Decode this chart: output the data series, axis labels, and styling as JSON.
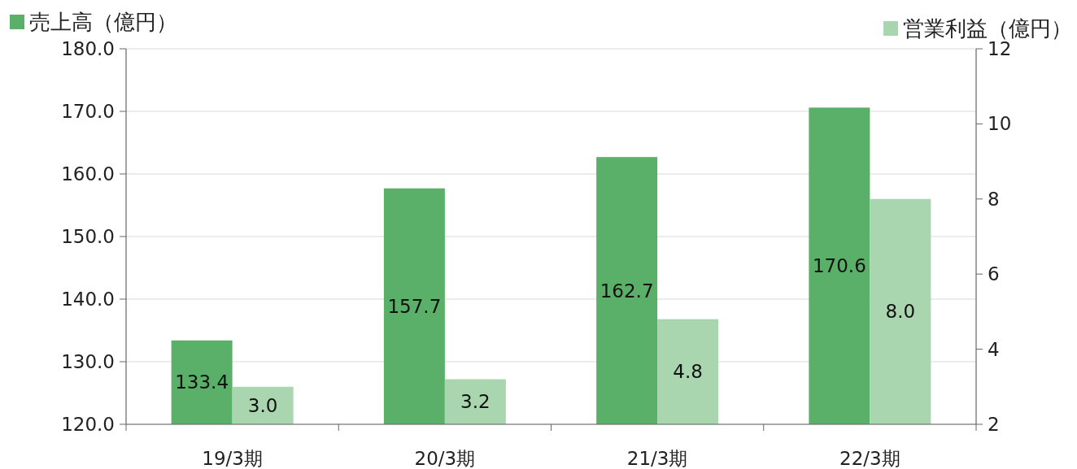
{
  "chart_data": {
    "type": "bar",
    "categories": [
      "19/3期",
      "20/3期",
      "21/3期",
      "22/3期"
    ],
    "series": [
      {
        "name": "売上高（億円）",
        "color": "#5ab068",
        "values": [
          133.4,
          157.7,
          162.7,
          170.6
        ],
        "value_labels": [
          "133.4",
          "157.7",
          "162.7",
          "170.6"
        ]
      },
      {
        "name": "営業利益（億円）",
        "color": "#a9d5af",
        "axis": "y2",
        "values": [
          3.0,
          3.2,
          4.8,
          8.0
        ],
        "value_labels": [
          "3.0",
          "3.2",
          "4.8",
          "8.0"
        ]
      }
    ],
    "ylim": [
      120,
      180
    ],
    "yticks": [
      {
        "value": 120,
        "label": "120.0"
      },
      {
        "value": 130,
        "label": "130.0"
      },
      {
        "value": 140,
        "label": "140.0"
      },
      {
        "value": 150,
        "label": "150.0"
      },
      {
        "value": 160,
        "label": "160.0"
      },
      {
        "value": 170,
        "label": "170.0"
      },
      {
        "value": 180,
        "label": "180.0"
      }
    ],
    "y2lim": [
      2,
      12
    ],
    "y2ticks": [
      2,
      4,
      6,
      8,
      10,
      12
    ],
    "grid": "y",
    "legend": "top"
  }
}
